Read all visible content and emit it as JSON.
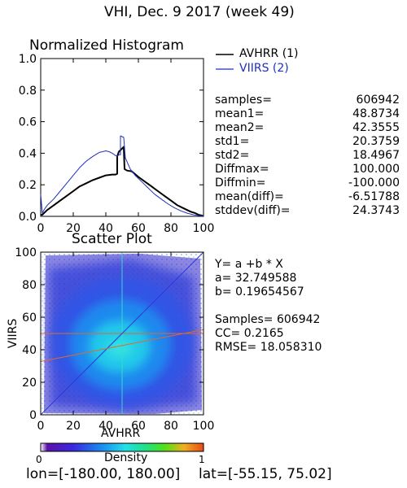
{
  "page_title": "VHI,  Dec. 9 2017 (week 49)",
  "colors": {
    "avhrr": "#000000",
    "viirs": "#1f2fbf",
    "regression": "#2a3bd8",
    "mean_cross": "#e06a2c",
    "mean_vertical": "#3bd8c8"
  },
  "histogram": {
    "title": "Normalized Histogram",
    "legend": [
      {
        "label": "AVHRR (1)",
        "color": "#000000"
      },
      {
        "label": "VIIRS (2)",
        "color": "#1f2fbf"
      }
    ],
    "stats": [
      {
        "label": "samples=",
        "value": "606942"
      },
      {
        "label": "mean1=",
        "value": "48.8734"
      },
      {
        "label": "mean2=",
        "value": "42.3555"
      },
      {
        "label": "std1=",
        "value": "20.3759"
      },
      {
        "label": "std2=",
        "value": "18.4967"
      },
      {
        "label": "Diffmax=",
        "value": "100.000"
      },
      {
        "label": "Diffmin=",
        "value": "-100.000"
      },
      {
        "label": "mean(diff)=",
        "value": "-6.51788"
      },
      {
        "label": "stddev(diff)=",
        "value": "24.3743"
      }
    ]
  },
  "scatter": {
    "title": "Scatter Plot",
    "ylabel": "VIIRS",
    "xlabel": "AVHRR",
    "equation": "Y= a +b * X",
    "a_text": "a= 32.749588",
    "b_text": "b= 0.19654567",
    "samples_text": "Samples= 606942",
    "cc_text": "CC=  0.2165",
    "rmse_text": "RMSE= 18.058310"
  },
  "colorbar": {
    "label": "Density",
    "min": "0",
    "max": "1"
  },
  "footer": {
    "lon_text": "lon=[-180.00, 180.00]",
    "lat_text": "lat=[-55.15, 75.02]"
  },
  "chart_data": [
    {
      "type": "line",
      "title": "Normalized Histogram",
      "xlim": [
        0,
        100
      ],
      "ylim": [
        0,
        1
      ],
      "xticks": [
        0,
        20,
        40,
        60,
        80,
        100
      ],
      "yticks": [
        "0.0",
        "0.2",
        "0.4",
        "0.6",
        "0.8",
        "1.0"
      ],
      "series": [
        {
          "name": "AVHRR (1)",
          "color": "#000000",
          "x": [
            0,
            1,
            2,
            4,
            8,
            12,
            16,
            20,
            24,
            28,
            32,
            36,
            40,
            44,
            46,
            47,
            47.01,
            48,
            50,
            51,
            51.5,
            53,
            56,
            60,
            64,
            68,
            72,
            76,
            80,
            84,
            88,
            92,
            95,
            97,
            99,
            100
          ],
          "y": [
            0.01,
            0.01,
            0.02,
            0.04,
            0.07,
            0.1,
            0.13,
            0.16,
            0.19,
            0.21,
            0.23,
            0.245,
            0.26,
            0.265,
            0.265,
            0.27,
            0.38,
            0.41,
            0.43,
            0.44,
            0.3,
            0.29,
            0.285,
            0.25,
            0.22,
            0.19,
            0.16,
            0.13,
            0.1,
            0.07,
            0.05,
            0.03,
            0.02,
            0.01,
            0.005,
            0.0
          ]
        },
        {
          "name": "VIIRS (2)",
          "color": "#1f2fbf",
          "x": [
            0,
            1,
            2,
            4,
            8,
            12,
            16,
            20,
            24,
            28,
            32,
            36,
            40,
            42,
            44,
            46,
            47,
            48,
            49,
            49.01,
            50,
            51,
            52,
            55,
            58,
            62,
            66,
            70,
            74,
            78,
            82,
            86,
            90,
            94,
            97,
            99,
            100
          ],
          "y": [
            0.14,
            0.02,
            0.04,
            0.07,
            0.11,
            0.16,
            0.21,
            0.26,
            0.31,
            0.35,
            0.38,
            0.405,
            0.415,
            0.41,
            0.4,
            0.385,
            0.38,
            0.39,
            0.39,
            0.51,
            0.505,
            0.5,
            0.37,
            0.3,
            0.26,
            0.22,
            0.18,
            0.14,
            0.11,
            0.08,
            0.055,
            0.035,
            0.02,
            0.01,
            0.005,
            0.003,
            0.0
          ]
        }
      ]
    },
    {
      "type": "heatmap",
      "title": "Scatter Plot",
      "xlabel": "AVHRR",
      "ylabel": "VIIRS",
      "xlim": [
        0,
        100
      ],
      "ylim": [
        0,
        100
      ],
      "xticks": [
        0,
        20,
        40,
        60,
        80,
        100
      ],
      "yticks": [
        0,
        20,
        40,
        60,
        80,
        100
      ],
      "density_center": [
        48.9,
        42.4
      ],
      "regression": {
        "a": 32.749588,
        "b": 0.19654567
      },
      "mean_lines": {
        "x": 50,
        "y": 50
      },
      "colorbar_range": [
        0,
        1
      ]
    }
  ]
}
